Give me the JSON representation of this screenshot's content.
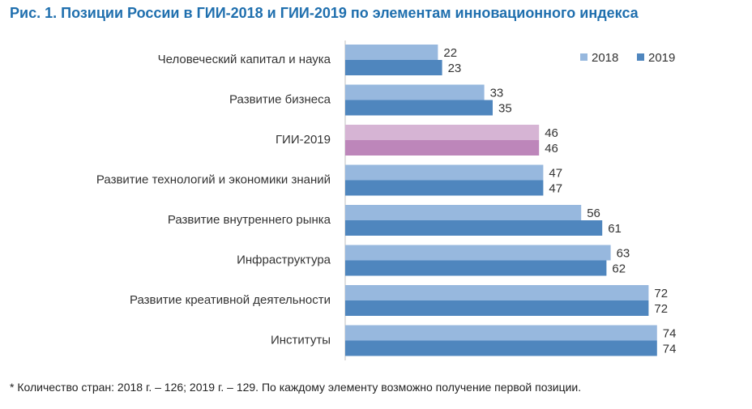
{
  "title": {
    "figure_label": "Рис. 1.",
    "text": "Позиции России в ГИИ-2018 и ГИИ-2019 по элементам инновационного индекса"
  },
  "footnote": "* Количество стран: 2018 г. – 126; 2019 г. – 129. По каждому элементу возможно получение первой позиции.",
  "colors": {
    "series_2018": "#97b8de",
    "series_2019": "#4f86be",
    "gii_2018": "#d6b4d4",
    "gii_2019": "#bd86ba"
  },
  "chart_data": {
    "type": "bar",
    "orientation": "horizontal",
    "categories": [
      "Человеческий капитал и наука",
      "Развитие бизнеса",
      "ГИИ-2019",
      "Развитие технологий и экономики знаний",
      "Развитие внутреннего рынка",
      "Инфраструктура",
      "Развитие креативной деятельности",
      "Институты"
    ],
    "series": [
      {
        "name": "2018",
        "values": [
          22,
          33,
          46,
          47,
          56,
          63,
          72,
          74
        ]
      },
      {
        "name": "2019",
        "values": [
          23,
          35,
          46,
          47,
          61,
          62,
          72,
          74
        ]
      }
    ],
    "highlight_category": "ГИИ-2019",
    "xlim": [
      0,
      80
    ],
    "grid": false,
    "legend": "top-right",
    "data_labels": true
  }
}
